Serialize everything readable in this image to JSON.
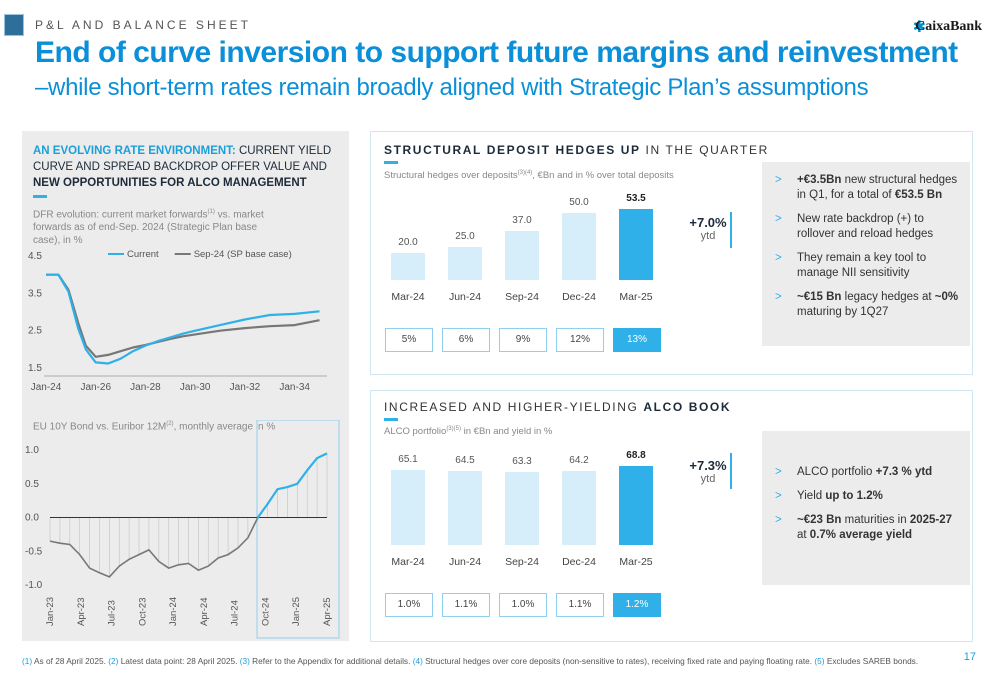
{
  "header": {
    "section": "P&L AND BALANCE SHEET",
    "title": "End of curve inversion to support future margins and reinvestment",
    "subtitle": "–while short-term rates remain broadly aligned with Strategic Plan’s assumptions",
    "brand": "CaixaBank"
  },
  "left": {
    "heading_blue": "AN EVOLVING RATE ENVIRONMENT:",
    "heading_plain": " CURRENT YIELD CURVE AND SPREAD BACKDROP OFFER VALUE AND ",
    "heading_bold": "NEW OPPORTUNITIES FOR ALCO MANAGEMENT",
    "chart1_note_a": "DFR evolution: current market forwards",
    "chart1_note_sup": "(1)",
    "chart1_note_b": " vs. market forwards as of end-Sep. 2024 (Strategic Plan base case), in %",
    "chart2_note_a": "EU 10Y Bond vs. Euribor 12M",
    "chart2_note_sup": "(2)",
    "chart2_note_b": ", monthly average in %"
  },
  "hedges": {
    "title_bold": "STRUCTURAL DEPOSIT HEDGES UP",
    "title_rest": " IN THE QUARTER",
    "caption_a": "Structural hedges over deposits",
    "caption_sup": "(3)(4)",
    "caption_b": ", €Bn and in % over total deposits",
    "ytd_value": "+7.0%",
    "ytd_unit": "ytd",
    "bullets": [
      {
        "parts": [
          {
            "t": "+€3.5Bn",
            "b": true
          },
          {
            "t": " new structural hedges in Q1, for a total of ",
            "b": false
          },
          {
            "t": "€53.5 Bn",
            "b": true
          }
        ]
      },
      {
        "parts": [
          {
            "t": "New rate backdrop (+) to rollover and reload hedges",
            "b": false
          }
        ]
      },
      {
        "parts": [
          {
            "t": "They remain a key tool to manage NII sensitivity",
            "b": false
          }
        ]
      },
      {
        "parts": [
          {
            "t": "~€15 Bn",
            "b": true
          },
          {
            "t": " legacy hedges at ",
            "b": false
          },
          {
            "t": "~0%",
            "b": true
          },
          {
            "t": " maturing by 1Q27",
            "b": false
          }
        ]
      }
    ]
  },
  "alco": {
    "title_rest": "INCREASED AND HIGHER-YIELDING ",
    "title_bold": "ALCO BOOK",
    "caption_a": "ALCO portfolio",
    "caption_sup": "(3)(5)",
    "caption_b": " in €Bn and yield in %",
    "ytd_value": "+7.3%",
    "ytd_unit": "ytd",
    "bullets": [
      {
        "parts": [
          {
            "t": "ALCO portfolio ",
            "b": false
          },
          {
            "t": "+7.3 % ytd",
            "b": true
          }
        ]
      },
      {
        "parts": [
          {
            "t": "Yield ",
            "b": false
          },
          {
            "t": "up to 1.2%",
            "b": true
          }
        ]
      },
      {
        "parts": [
          {
            "t": "~€23 Bn",
            "b": true
          },
          {
            "t": " maturities in ",
            "b": false
          },
          {
            "t": "2025-27",
            "b": true
          },
          {
            "t": " at ",
            "b": false
          },
          {
            "t": "0.7% average yield",
            "b": true
          }
        ]
      }
    ]
  },
  "arrow_glyph": ">",
  "footnote": [
    {
      "t": "(1)",
      "c": true
    },
    {
      "t": " As of 28 April 2025. ",
      "c": false
    },
    {
      "t": "(2)",
      "c": true
    },
    {
      "t": " Latest data point: 28 April 2025. ",
      "c": false
    },
    {
      "t": "(3)",
      "c": true
    },
    {
      "t": " Refer to the Appendix for additional details. ",
      "c": false
    },
    {
      "t": "(4)",
      "c": true
    },
    {
      "t": " Structural hedges over core deposits (non-sensitive to rates), receiving fixed rate and paying floating rate. ",
      "c": false
    },
    {
      "t": "(5)",
      "c": true
    },
    {
      "t": " Excludes SAREB bonds.",
      "c": false
    }
  ],
  "page_number": "17",
  "colors": {
    "accent": "#2fb0e8",
    "title": "#0b8fd8",
    "bar_light": "#d6eef9",
    "sep24_line": "#777777"
  },
  "chart_data": [
    {
      "type": "line",
      "x_ticks": [
        "Jan-24",
        "Jan-26",
        "Jan-28",
        "Jan-30",
        "Jan-32",
        "Jan-34"
      ],
      "y_ticks": [
        "4.5",
        "3.5",
        "2.5",
        "1.5"
      ],
      "ylim": [
        1.5,
        4.5
      ],
      "xlim": [
        2024.0,
        2035.3
      ],
      "legend_position": "top",
      "grid": false,
      "series": [
        {
          "name": "Current",
          "color": "#2fb0e8",
          "x": [
            2024.0,
            2024.5,
            2024.9,
            2025.3,
            2025.6,
            2026.0,
            2026.5,
            2027.0,
            2027.5,
            2028.0,
            2028.5,
            2029.0,
            2029.5,
            2030.0,
            2031.0,
            2032.0,
            2033.0,
            2034.0,
            2035.0
          ],
          "y": [
            4.0,
            4.0,
            3.55,
            2.55,
            2.0,
            1.65,
            1.62,
            1.75,
            1.95,
            2.1,
            2.22,
            2.32,
            2.42,
            2.5,
            2.65,
            2.8,
            2.92,
            2.95,
            3.02
          ]
        },
        {
          "name": "Sep-24 (SP base case)",
          "color": "#777777",
          "x": [
            2024.0,
            2024.5,
            2024.9,
            2025.3,
            2025.6,
            2026.0,
            2026.5,
            2027.0,
            2027.5,
            2028.0,
            2028.5,
            2029.0,
            2029.5,
            2030.0,
            2031.0,
            2032.0,
            2033.0,
            2034.0,
            2035.0
          ],
          "y": [
            4.0,
            4.0,
            3.6,
            2.7,
            2.1,
            1.8,
            1.85,
            1.95,
            2.05,
            2.12,
            2.2,
            2.28,
            2.35,
            2.4,
            2.5,
            2.57,
            2.62,
            2.65,
            2.78
          ]
        }
      ]
    },
    {
      "type": "area",
      "x_ticks": [
        "Jan-23",
        "Apr-23",
        "Jul-23",
        "Oct-23",
        "Jan-24",
        "Apr-24",
        "Jul-24",
        "Oct-24",
        "Jan-25",
        "Apr-25"
      ],
      "y_ticks": [
        "1.0",
        "0.5",
        "0.0",
        "-0.5",
        "-1.0"
      ],
      "ylim": [
        -1.0,
        1.0
      ],
      "highlight_from": "Oct-24",
      "series": [
        {
          "name": "",
          "color": "#2fb0e8",
          "values": [
            -0.35,
            -0.38,
            -0.4,
            -0.55,
            -0.75,
            -0.82,
            -0.88,
            -0.72,
            -0.62,
            -0.55,
            -0.48,
            -0.65,
            -0.75,
            -0.7,
            -0.68,
            -0.78,
            -0.72,
            -0.6,
            -0.55,
            -0.45,
            -0.3,
            0.0,
            0.2,
            0.42,
            0.45,
            0.5,
            0.7,
            0.88,
            0.95
          ]
        }
      ]
    },
    {
      "type": "bar",
      "categories": [
        "Mar-24",
        "Jun-24",
        "Sep-24",
        "Dec-24",
        "Mar-25"
      ],
      "values": [
        20.0,
        25.0,
        37.0,
        50.0,
        53.5
      ],
      "value_labels": [
        "20.0",
        "25.0",
        "37.0",
        "50.0",
        "53.5"
      ],
      "pct_labels": [
        "5%",
        "6%",
        "9%",
        "12%",
        "13%"
      ],
      "highlight_index": 4,
      "ylim": [
        0,
        60
      ]
    },
    {
      "type": "bar",
      "categories": [
        "Mar-24",
        "Jun-24",
        "Sep-24",
        "Dec-24",
        "Mar-25"
      ],
      "values": [
        65.1,
        64.5,
        63.3,
        64.2,
        68.8
      ],
      "value_labels": [
        "65.1",
        "64.5",
        "63.3",
        "64.2",
        "68.8"
      ],
      "pct_labels": [
        "1.0%",
        "1.1%",
        "1.0%",
        "1.1%",
        "1.2%"
      ],
      "highlight_index": 4,
      "ylim": [
        0,
        75
      ]
    }
  ]
}
